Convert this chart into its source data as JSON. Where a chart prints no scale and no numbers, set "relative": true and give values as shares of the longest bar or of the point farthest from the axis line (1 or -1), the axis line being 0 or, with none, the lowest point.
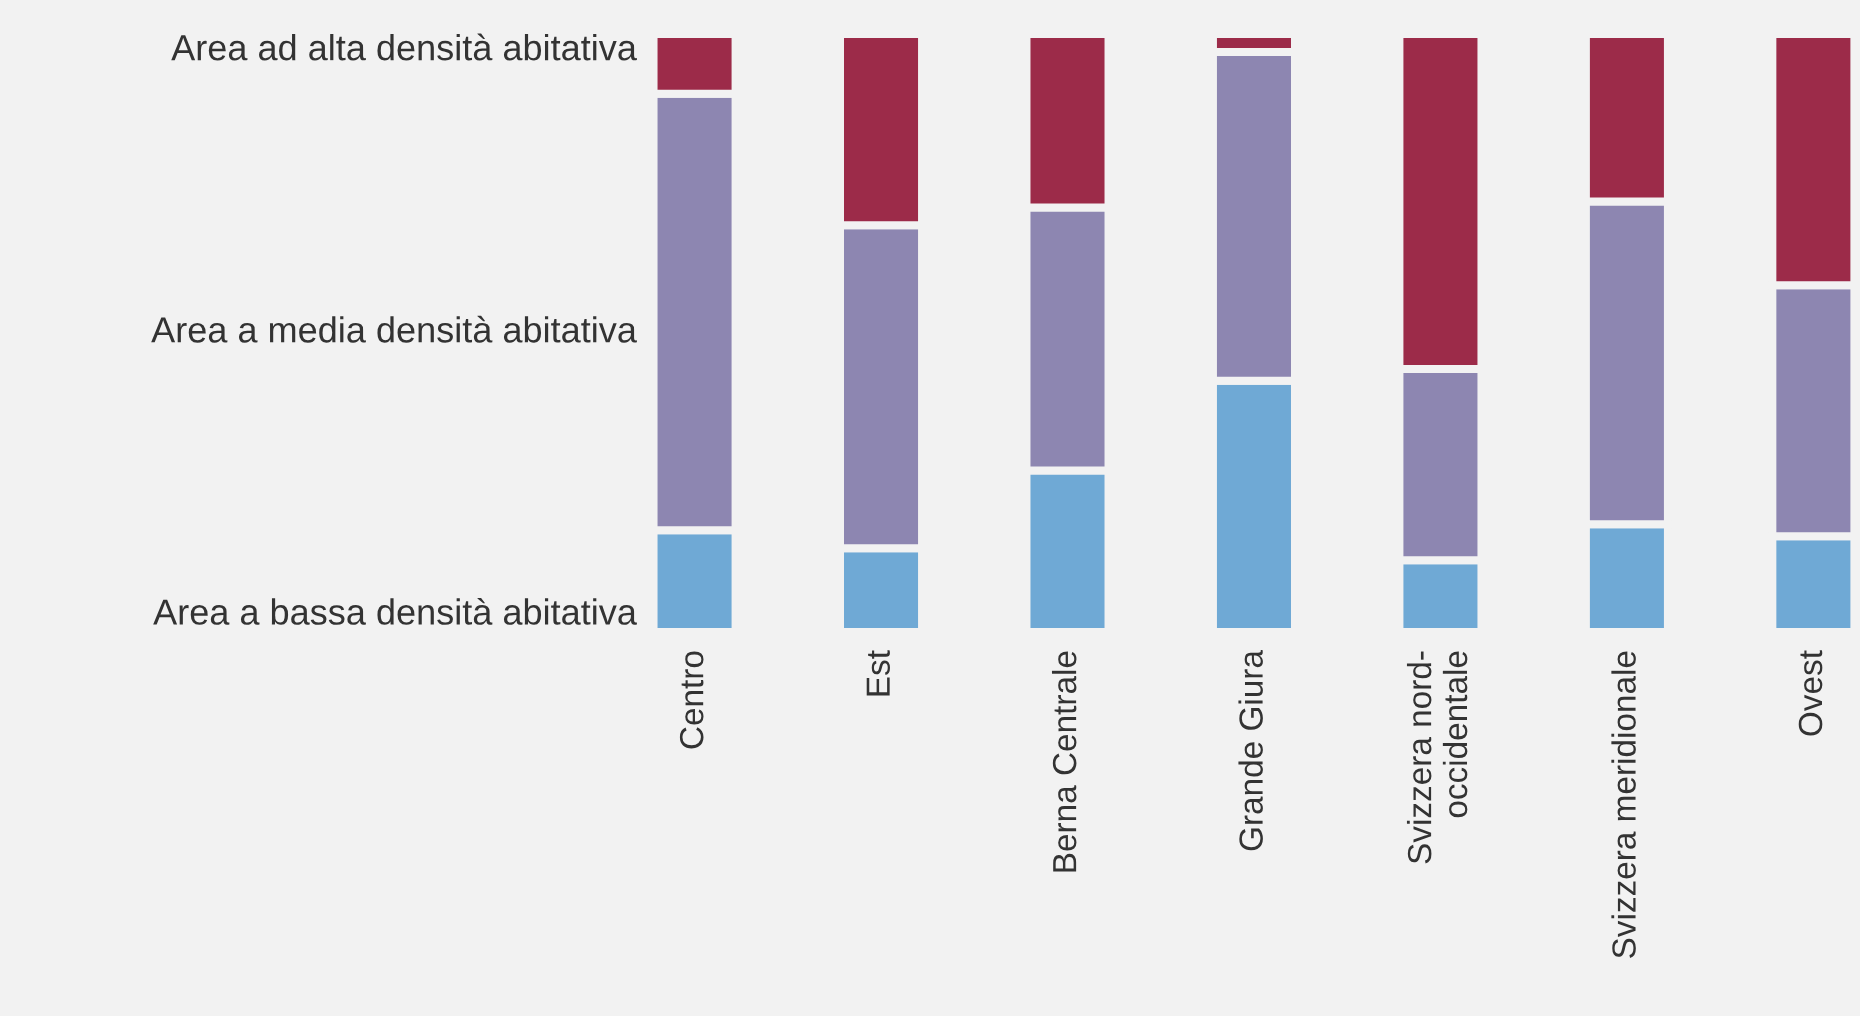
{
  "chart_data": {
    "type": "bar",
    "stacked": true,
    "relative": true,
    "categories": [
      "Centro",
      "Est",
      "Berna Centrale",
      "Grande Giura",
      "Svizzera nord-\noccidentale",
      "Svizzera meridionale",
      "Ovest"
    ],
    "series": [
      {
        "name": "Area a bassa densità abitativa",
        "color": "#6fa9d5",
        "values": [
          0.17,
          0.14,
          0.27,
          0.42,
          0.12,
          0.18,
          0.16
        ]
      },
      {
        "name": "Area a media densità abitativa",
        "color": "#8d86b1",
        "values": [
          0.73,
          0.54,
          0.44,
          0.55,
          0.32,
          0.54,
          0.42
        ]
      },
      {
        "name": "Area ad alta densità abitativa",
        "color": "#9c2b49",
        "values": [
          0.1,
          0.32,
          0.29,
          0.03,
          0.56,
          0.28,
          0.42
        ]
      }
    ]
  }
}
